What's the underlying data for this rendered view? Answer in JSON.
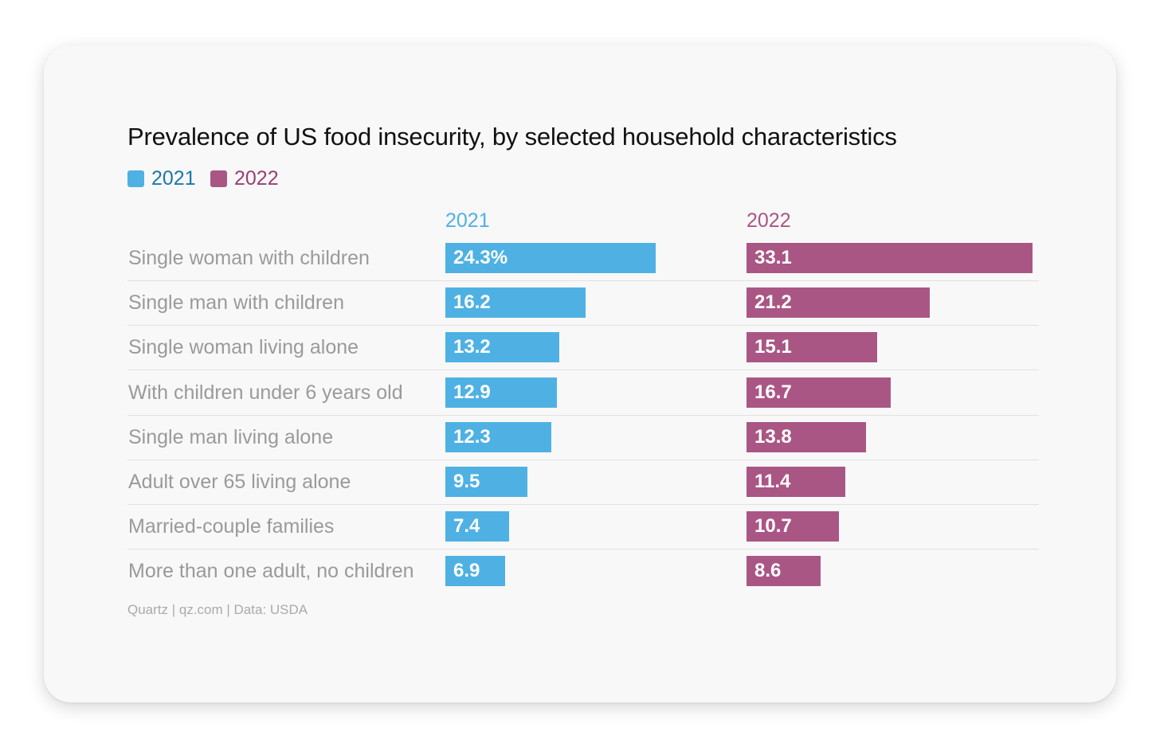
{
  "chart_data": {
    "type": "bar",
    "title": "Prevalence of US food insecurity, by selected household characteristics",
    "categories": [
      "Single woman with children",
      "Single man with children",
      "Single woman living alone",
      "With children under 6 years old",
      "Single man living alone",
      "Adult over 65 living alone",
      "Married-couple families",
      "More than one adult, no children"
    ],
    "series": [
      {
        "name": "2021",
        "color": "#4fb1e3",
        "values": [
          24.3,
          16.2,
          13.2,
          12.9,
          12.3,
          9.5,
          7.4,
          6.9
        ],
        "labels": [
          "24.3%",
          "16.2",
          "13.2",
          "12.9",
          "12.3",
          "9.5",
          "7.4",
          "6.9"
        ]
      },
      {
        "name": "2022",
        "color": "#aa5685",
        "values": [
          33.1,
          21.2,
          15.1,
          16.7,
          13.8,
          11.4,
          10.7,
          8.6
        ],
        "labels": [
          "33.1",
          "21.2",
          "15.1",
          "16.7",
          "13.8",
          "11.4",
          "10.7",
          "8.6"
        ]
      }
    ],
    "legend": {
      "position": "top-left"
    },
    "source": "Quartz | qz.com | Data: USDA"
  },
  "colors": {
    "y2021_text": "#1d77a8",
    "y2022_text": "#9a3f72",
    "col2021_head": "#4fb1e3",
    "col2022_head": "#aa5685"
  }
}
